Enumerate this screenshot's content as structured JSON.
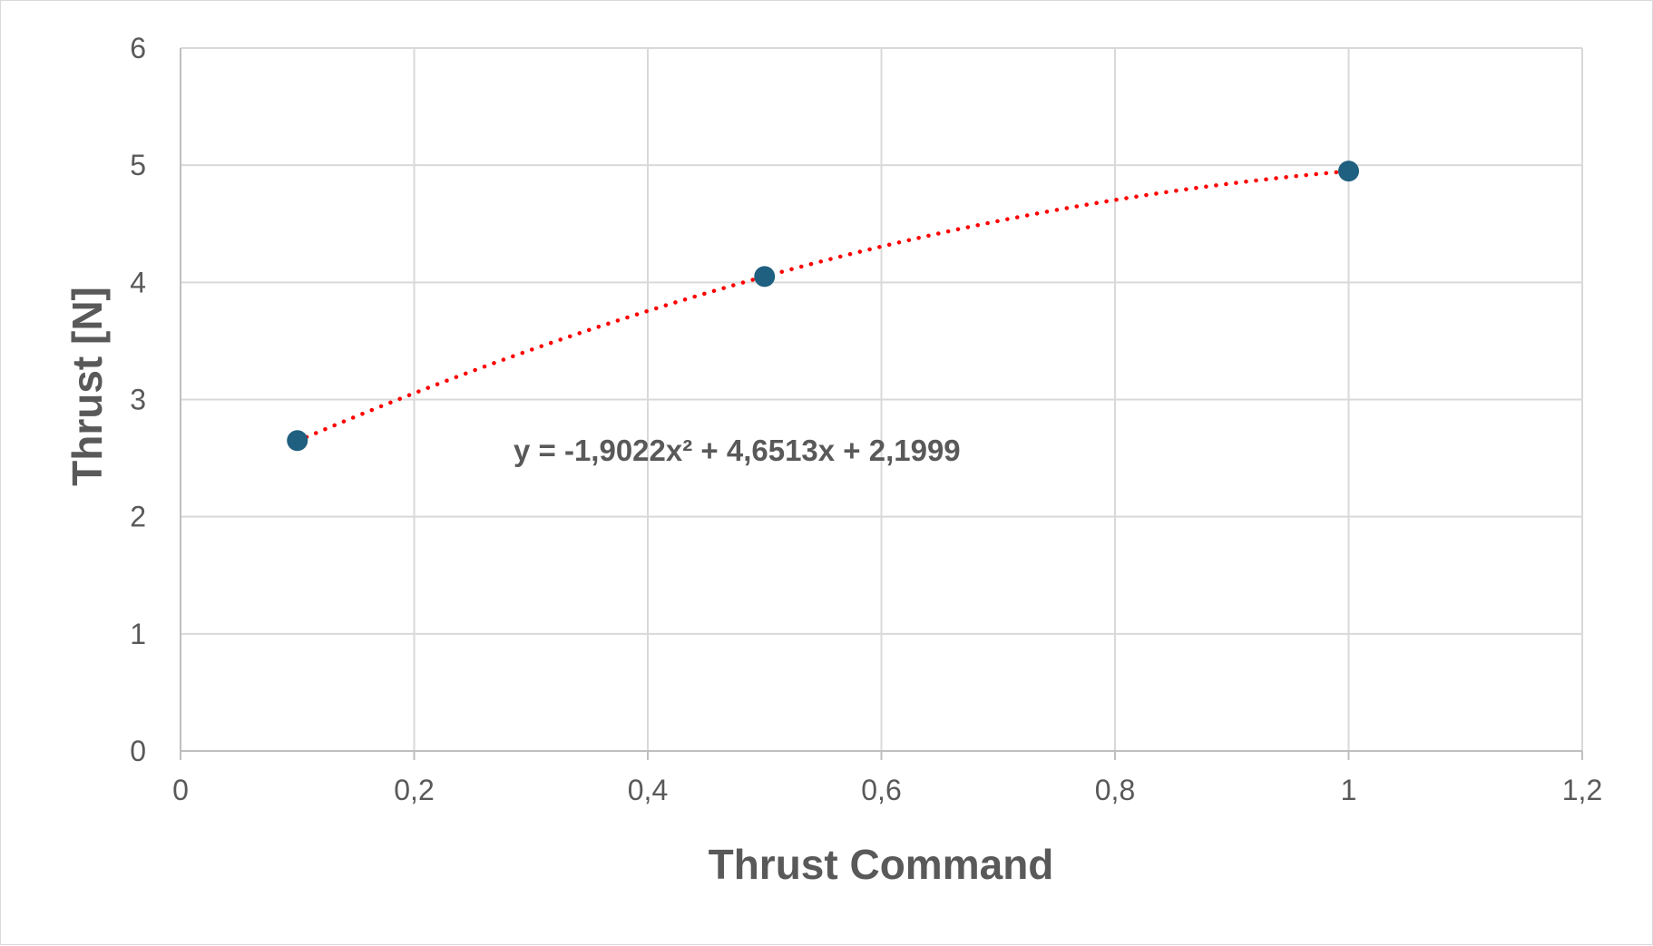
{
  "chart_data": {
    "type": "scatter",
    "title": "",
    "xlabel": "Thrust Command",
    "ylabel": "Thrust [N]",
    "xlim": [
      0,
      1.2
    ],
    "ylim": [
      0,
      6
    ],
    "x_ticks": [
      "0",
      "0,2",
      "0,4",
      "0,6",
      "0,8",
      "1",
      "1,2"
    ],
    "y_ticks": [
      "0",
      "1",
      "2",
      "3",
      "4",
      "5",
      "6"
    ],
    "grid": true,
    "legend": "none",
    "series": [
      {
        "x": [
          0.1,
          0.5,
          1.0
        ],
        "y": [
          2.65,
          4.05,
          4.95
        ],
        "color": "#1f5f7f"
      }
    ],
    "trendline": {
      "type": "polynomial-2",
      "coefficients": [
        -1.9022,
        4.6513,
        2.1999
      ],
      "x_range": [
        0.1,
        1.0
      ],
      "color": "#ff0000",
      "style": "dotted",
      "equation_text": "y = -1,9022x² + 4,6513x + 2,1999"
    }
  }
}
